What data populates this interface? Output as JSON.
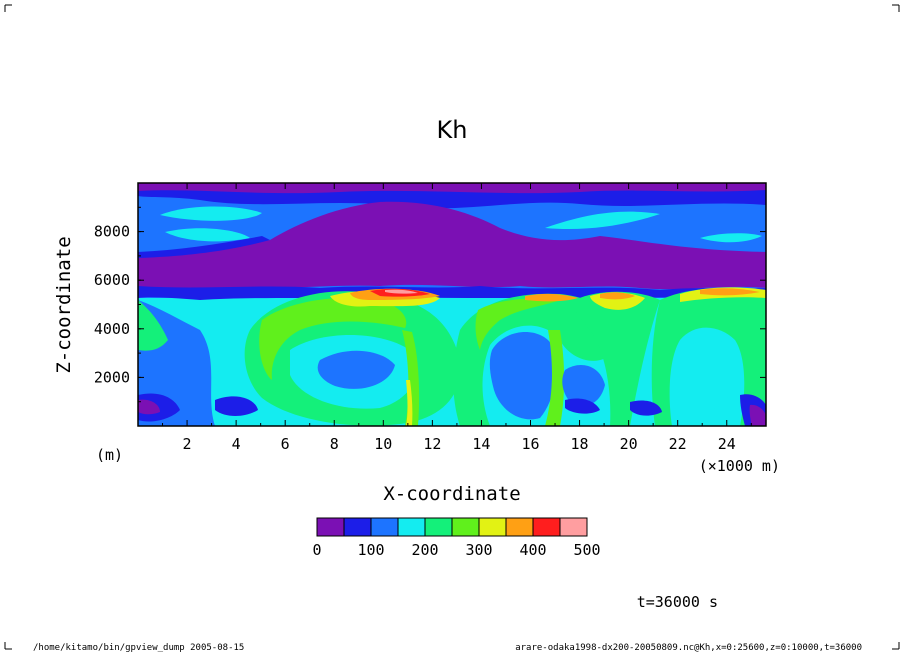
{
  "chart_data": {
    "type": "heatmap",
    "title": "Kh",
    "xlabel": "X-coordinate",
    "ylabel": "Z-coordinate",
    "x_unit_left": "(m)",
    "x_unit_right": "(×1000 m)",
    "xlim": [
      0,
      25.6
    ],
    "ylim": [
      0,
      10000
    ],
    "x_ticks": [
      "2",
      "4",
      "6",
      "8",
      "10",
      "12",
      "14",
      "16",
      "18",
      "20",
      "22",
      "24"
    ],
    "y_ticks": [
      "2000",
      "4000",
      "6000",
      "8000"
    ],
    "colorbar": {
      "levels": [
        0,
        50,
        100,
        150,
        200,
        250,
        300,
        350,
        400,
        450,
        500
      ],
      "labels": [
        "0",
        "100",
        "200",
        "300",
        "400",
        "500"
      ],
      "colors": [
        "#7b10b4",
        "#1c1ee8",
        "#1d74ff",
        "#14ecf0",
        "#14f07a",
        "#60f01c",
        "#e2f214",
        "#ffa014",
        "#ff1e1e",
        "#ff9ea0"
      ]
    },
    "time_label": "t=36000 s",
    "regions": [
      {
        "desc": "upper layer z 6800-9800",
        "level_band": [
          0,
          150
        ]
      },
      {
        "desc": "violet band z 5800-7000",
        "level_band": [
          0,
          50
        ]
      },
      {
        "desc": "lower convective layer z 0-5800",
        "level_band": [
          50,
          500
        ]
      }
    ]
  },
  "footer": {
    "left": "/home/kitamo/bin/gpview_dump  2005-08-15",
    "right": "arare-odaka1998-dx200-20050809.nc@Kh,x=0:25600,z=0:10000,t=36000"
  }
}
